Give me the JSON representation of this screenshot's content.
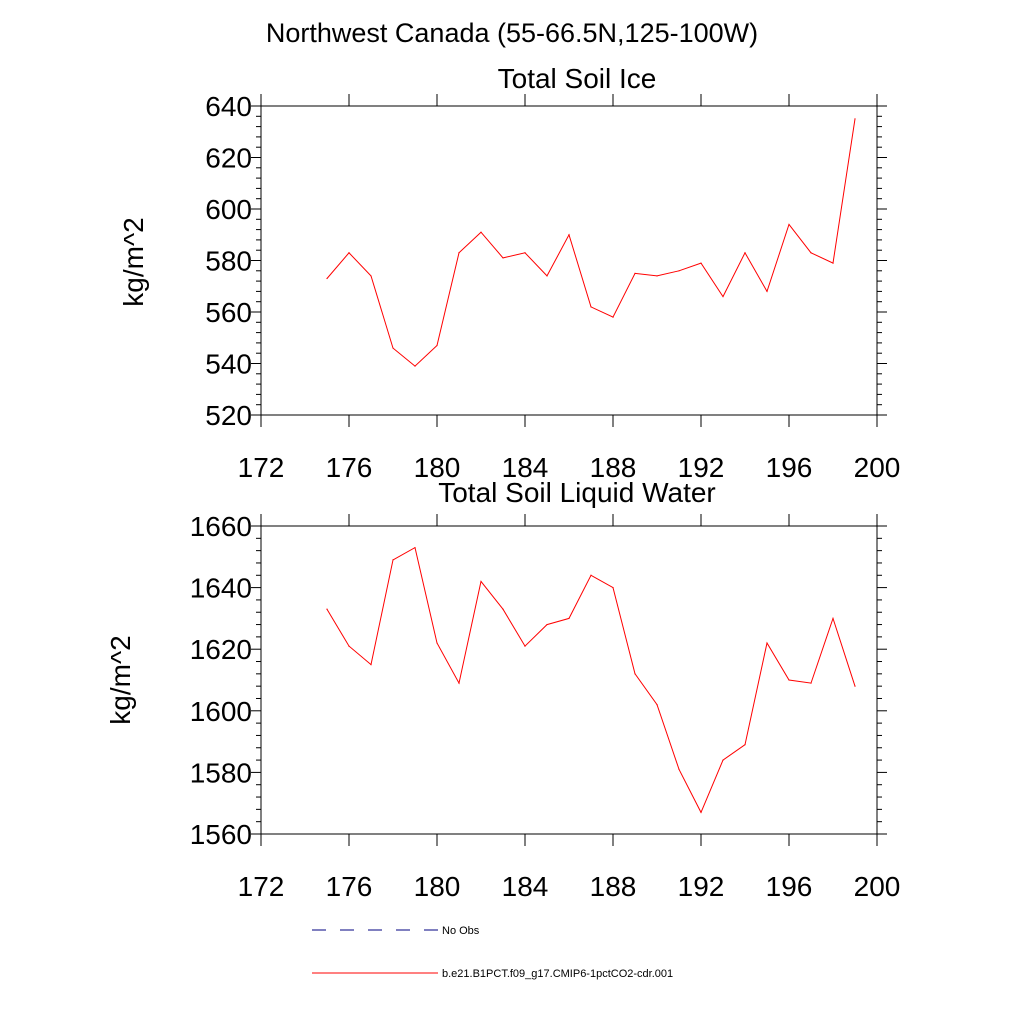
{
  "figure": {
    "suptitle": "Northwest Canada (55-66.5N,125-100W)"
  },
  "colors": {
    "model": "#ff0000",
    "obs": "#000080"
  },
  "legend": {
    "placement": "bottom",
    "entries": [
      {
        "label": "No Obs",
        "style": "dashed",
        "color": "#000080"
      },
      {
        "label": "b.e21.B1PCT.f09_g17.CMIP6-1pctCO2-cdr.001",
        "style": "solid",
        "color": "#ff0000"
      }
    ]
  },
  "chart_data": [
    {
      "type": "line",
      "title": "Total Soil Ice",
      "ylabel": "kg/m^2",
      "xlabel": "",
      "xlim": [
        172,
        200
      ],
      "ylim": [
        520,
        640
      ],
      "xticks": [
        172,
        176,
        180,
        184,
        188,
        192,
        196,
        200
      ],
      "yticks": [
        520,
        540,
        560,
        580,
        600,
        620,
        640
      ],
      "grid": false,
      "x": [
        175,
        176,
        177,
        178,
        179,
        180,
        181,
        182,
        183,
        184,
        185,
        186,
        187,
        188,
        189,
        190,
        191,
        192,
        193,
        194,
        195,
        196,
        197,
        198,
        199
      ],
      "series": [
        {
          "name": "b.e21.B1PCT.f09_g17.CMIP6-1pctCO2-cdr.001",
          "color": "#ff0000",
          "values": [
            573,
            583,
            574,
            546,
            539,
            547,
            583,
            591,
            581,
            583,
            574,
            590,
            562,
            558,
            575,
            574,
            576,
            579,
            566,
            583,
            568,
            594,
            583,
            579,
            635
          ]
        }
      ]
    },
    {
      "type": "line",
      "title": "Total Soil Liquid Water",
      "ylabel": "kg/m^2",
      "xlabel": "",
      "xlim": [
        172,
        200
      ],
      "ylim": [
        1560,
        1660
      ],
      "xticks": [
        172,
        176,
        180,
        184,
        188,
        192,
        196,
        200
      ],
      "yticks": [
        1560,
        1580,
        1600,
        1620,
        1640,
        1660
      ],
      "grid": false,
      "x": [
        175,
        176,
        177,
        178,
        179,
        180,
        181,
        182,
        183,
        184,
        185,
        186,
        187,
        188,
        189,
        190,
        191,
        192,
        193,
        194,
        195,
        196,
        197,
        198,
        199
      ],
      "series": [
        {
          "name": "b.e21.B1PCT.f09_g17.CMIP6-1pctCO2-cdr.001",
          "color": "#ff0000",
          "values": [
            1633,
            1621,
            1615,
            1649,
            1653,
            1622,
            1609,
            1642,
            1633,
            1621,
            1628,
            1630,
            1644,
            1640,
            1612,
            1602,
            1581,
            1567,
            1584,
            1589,
            1622,
            1610,
            1609,
            1630,
            1608
          ]
        }
      ]
    }
  ]
}
